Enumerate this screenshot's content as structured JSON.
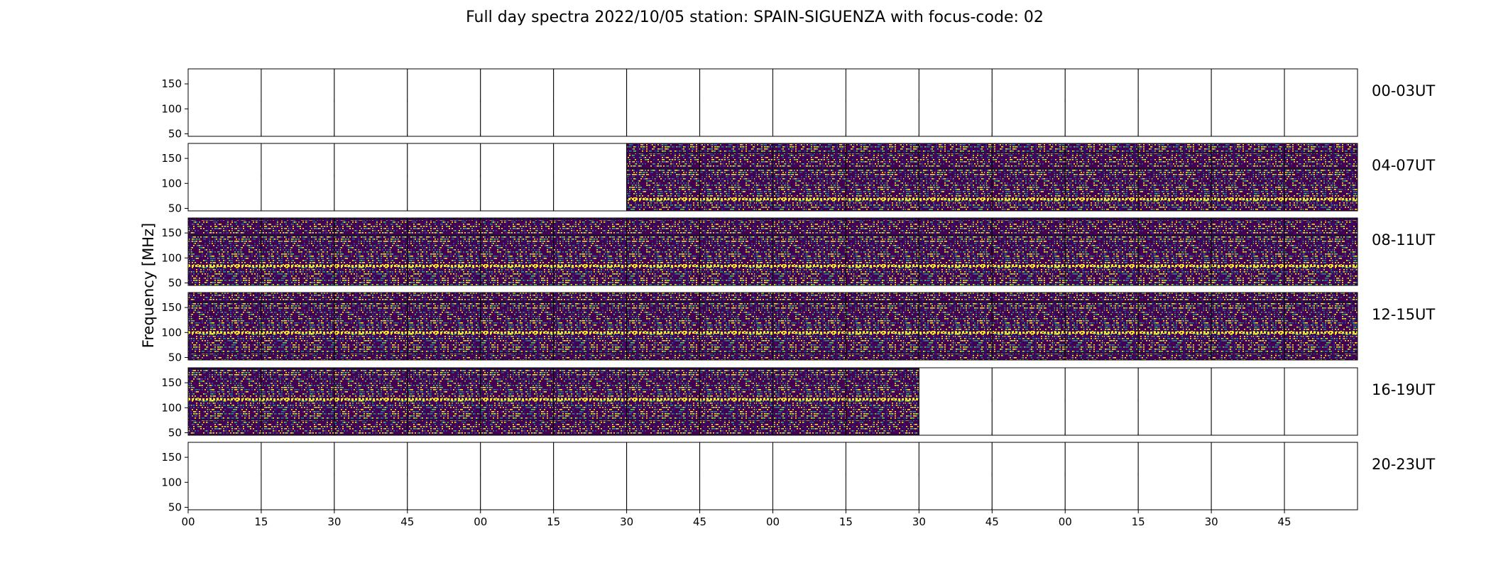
{
  "chart_data": {
    "type": "heatmap",
    "title": "Full day spectra 2022/10/05 station: SPAIN-SIGUENZA with focus-code: 02",
    "ylabel": "Frequency [MHz]",
    "xlabel": "",
    "yticks": [
      "150",
      "100",
      "50"
    ],
    "ytick_values": [
      150,
      100,
      50
    ],
    "ylim": [
      45,
      180
    ],
    "xticks": [
      "00",
      "15",
      "30",
      "45",
      "00",
      "15",
      "30",
      "45",
      "00",
      "15",
      "30",
      "45",
      "00",
      "15",
      "30",
      "45"
    ],
    "panels_per_row": 16,
    "panel_minutes": 15,
    "colormap": [
      "#440154",
      "#3b528b",
      "#21918c",
      "#5ec962",
      "#fde725"
    ],
    "rows": [
      {
        "label": "00-03UT",
        "filled": [
          0,
          0,
          0,
          0,
          0,
          0,
          0,
          0,
          0,
          0,
          0,
          0,
          0,
          0,
          0,
          0
        ]
      },
      {
        "label": "04-07UT",
        "filled": [
          0,
          0,
          0,
          0,
          0,
          0,
          1,
          1,
          1,
          1,
          1,
          1,
          1,
          1,
          1,
          1
        ]
      },
      {
        "label": "08-11UT",
        "filled": [
          1,
          1,
          1,
          1,
          1,
          1,
          1,
          1,
          1,
          1,
          1,
          1,
          1,
          1,
          1,
          1
        ]
      },
      {
        "label": "12-15UT",
        "filled": [
          1,
          1,
          1,
          1,
          1,
          1,
          1,
          1,
          1,
          1,
          1,
          1,
          1,
          1,
          1,
          1
        ]
      },
      {
        "label": "16-19UT",
        "filled": [
          1,
          1,
          1,
          1,
          1,
          1,
          1,
          1,
          1,
          1,
          0,
          0,
          0,
          0,
          0,
          0
        ]
      },
      {
        "label": "20-23UT",
        "filled": [
          0,
          0,
          0,
          0,
          0,
          0,
          0,
          0,
          0,
          0,
          0,
          0,
          0,
          0,
          0,
          0
        ]
      }
    ]
  }
}
